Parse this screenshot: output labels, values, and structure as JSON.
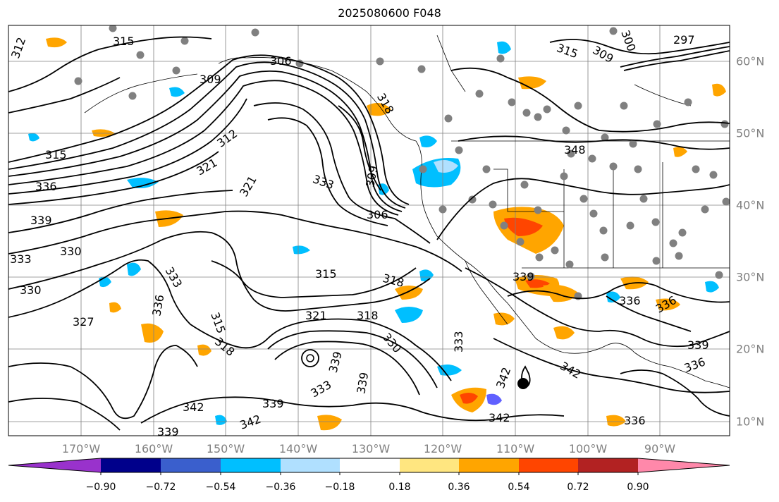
{
  "title": "2025080600 F048",
  "map": {
    "projection": "lat-lon",
    "lon_labels": [
      "170°W",
      "160°W",
      "150°W",
      "140°W",
      "130°W",
      "120°W",
      "110°W",
      "100°W",
      "90°W"
    ],
    "lat_labels": [
      "60°N",
      "50°N",
      "40°N",
      "30°N",
      "20°N",
      "10°N"
    ],
    "gridlines": true,
    "contour_labels": [
      {
        "text": "315"
      },
      {
        "text": "312"
      },
      {
        "text": "306"
      },
      {
        "text": "309"
      },
      {
        "text": "318"
      },
      {
        "text": "315"
      },
      {
        "text": "309"
      },
      {
        "text": "300"
      },
      {
        "text": "297"
      },
      {
        "text": "315"
      },
      {
        "text": "336"
      },
      {
        "text": "339"
      },
      {
        "text": "321"
      },
      {
        "text": "312"
      },
      {
        "text": "321"
      },
      {
        "text": "330"
      },
      {
        "text": "333"
      },
      {
        "text": "330"
      },
      {
        "text": "327"
      },
      {
        "text": "333"
      },
      {
        "text": "336"
      },
      {
        "text": "333"
      },
      {
        "text": "309"
      },
      {
        "text": "306"
      },
      {
        "text": "315"
      },
      {
        "text": "318"
      },
      {
        "text": "321"
      },
      {
        "text": "318"
      },
      {
        "text": "315"
      },
      {
        "text": "318"
      },
      {
        "text": "330"
      },
      {
        "text": "333"
      },
      {
        "text": "339"
      },
      {
        "text": "333"
      },
      {
        "text": "339"
      },
      {
        "text": "342"
      },
      {
        "text": "339"
      },
      {
        "text": "342"
      },
      {
        "text": "342"
      },
      {
        "text": "339"
      },
      {
        "text": "339"
      },
      {
        "text": "336"
      },
      {
        "text": "336"
      },
      {
        "text": "339"
      },
      {
        "text": "336"
      },
      {
        "text": "342"
      },
      {
        "text": "336"
      },
      {
        "text": "348"
      },
      {
        "text": "342"
      }
    ]
  },
  "colorbar": {
    "ticks": [
      "−0.90",
      "−0.72",
      "−0.54",
      "−0.36",
      "−0.18",
      "0.18",
      "0.36",
      "0.54",
      "0.72",
      "0.90"
    ],
    "colors": [
      "#9932CC",
      "#00008B",
      "#3A5FCD",
      "#00BFFF",
      "#B0E0FF",
      "#FFFFFF",
      "#FFE680",
      "#FFA500",
      "#FF4500",
      "#B22222",
      "#FF88AA"
    ],
    "extend": "both"
  },
  "colors": {
    "contour": "#000000",
    "gridline": "#808080",
    "coastline": "#000000",
    "station_dot": "#808080"
  }
}
